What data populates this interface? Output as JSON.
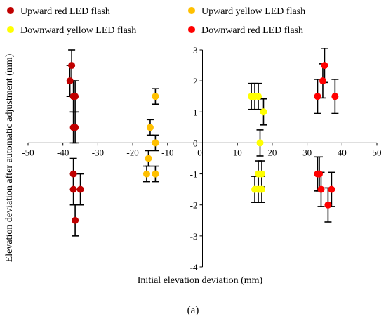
{
  "chart_data": {
    "type": "scatter",
    "panel_label": "(a)",
    "xlabel": "Initial elevation deviation (mm)",
    "ylabel": "Elevation deviation after automatic adjustment (mm)",
    "xlim": [
      -50,
      50
    ],
    "ylim": [
      -4,
      3
    ],
    "x_ticks": [
      -50,
      -40,
      -30,
      -20,
      -10,
      0,
      10,
      20,
      30,
      40,
      50
    ],
    "y_ticks": [
      -4,
      -3,
      -2,
      -1,
      0,
      1,
      2,
      3
    ],
    "grid": false,
    "legend_position": "top",
    "colors": {
      "upward_red": "#c00000",
      "upward_yellow": "#ffc000",
      "downward_yellow": "#ffff00",
      "downward_red": "#ff0000",
      "error_bar": "#000000",
      "axis": "#000000"
    },
    "series": [
      {
        "name": "Upward red LED flash",
        "color_key": "upward_red",
        "points": [
          {
            "x": -37.5,
            "y": 2.5,
            "err": 0.5
          },
          {
            "x": -38,
            "y": 2.0,
            "err": 0.5
          },
          {
            "x": -37,
            "y": 1.5,
            "err": 0.5
          },
          {
            "x": -36.5,
            "y": 1.5,
            "err": 0.5
          },
          {
            "x": -37,
            "y": 0.5,
            "err": 0.5
          },
          {
            "x": -36.5,
            "y": 0.5,
            "err": 0.5
          },
          {
            "x": -37,
            "y": -1.0,
            "err": 0.5
          },
          {
            "x": -37,
            "y": -1.5,
            "err": 0.5
          },
          {
            "x": -35,
            "y": -1.5,
            "err": 0.5
          },
          {
            "x": -36.5,
            "y": -2.5,
            "err": 0.5
          }
        ]
      },
      {
        "name": "Upward yellow LED flash",
        "color_key": "upward_yellow",
        "points": [
          {
            "x": -13.5,
            "y": 1.5,
            "err": 0.25
          },
          {
            "x": -15,
            "y": 0.5,
            "err": 0.25
          },
          {
            "x": -13.5,
            "y": 0.0,
            "err": 0.25
          },
          {
            "x": -15.5,
            "y": -0.5,
            "err": 0.25
          },
          {
            "x": -16,
            "y": -1.0,
            "err": 0.25
          },
          {
            "x": -13.5,
            "y": -1.0,
            "err": 0.25
          }
        ]
      },
      {
        "name": "Downward yellow LED flash",
        "color_key": "downward_yellow",
        "points": [
          {
            "x": 14,
            "y": 1.5,
            "err": 0.42
          },
          {
            "x": 15,
            "y": 1.5,
            "err": 0.42
          },
          {
            "x": 16,
            "y": 1.5,
            "err": 0.42
          },
          {
            "x": 17.5,
            "y": 1.0,
            "err": 0.42
          },
          {
            "x": 16.5,
            "y": 0.0,
            "err": 0.42
          },
          {
            "x": 16,
            "y": -1.0,
            "err": 0.42
          },
          {
            "x": 17,
            "y": -1.0,
            "err": 0.42
          },
          {
            "x": 15,
            "y": -1.5,
            "err": 0.42
          },
          {
            "x": 16,
            "y": -1.5,
            "err": 0.42
          },
          {
            "x": 17,
            "y": -1.5,
            "err": 0.42
          }
        ]
      },
      {
        "name": "Downward red LED flash",
        "color_key": "downward_red",
        "points": [
          {
            "x": 35,
            "y": 2.5,
            "err": 0.55
          },
          {
            "x": 34.5,
            "y": 2.0,
            "err": 0.55
          },
          {
            "x": 33,
            "y": 1.5,
            "err": 0.55
          },
          {
            "x": 38,
            "y": 1.5,
            "err": 0.55
          },
          {
            "x": 33,
            "y": -1.0,
            "err": 0.55
          },
          {
            "x": 33.5,
            "y": -1.0,
            "err": 0.55
          },
          {
            "x": 34,
            "y": -1.5,
            "err": 0.55
          },
          {
            "x": 37,
            "y": -1.5,
            "err": 0.55
          },
          {
            "x": 36,
            "y": -2.0,
            "err": 0.55
          }
        ]
      }
    ]
  }
}
